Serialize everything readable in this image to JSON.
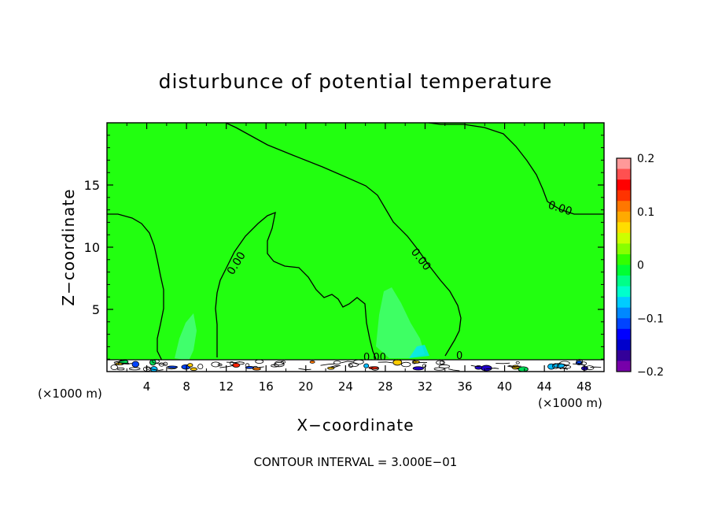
{
  "chart_data": {
    "type": "contour",
    "title": "disturbunce of potential temperature",
    "xlabel": "X−coordinate",
    "ylabel": "Z−coordinate",
    "x_unit_left": "(×1000 m)",
    "x_unit_right": "(×1000 m)",
    "xlim": [
      0,
      50
    ],
    "ylim": [
      0,
      20
    ],
    "xticks": [
      4,
      8,
      12,
      16,
      20,
      24,
      28,
      32,
      36,
      40,
      44,
      48
    ],
    "yticks": [
      5,
      10,
      15
    ],
    "contour_interval_text": "CONTOUR INTERVAL = 3.000E−01",
    "contour_labels": [
      "0.00",
      "0.00",
      "0.00",
      "0.00",
      "0",
      "0.00"
    ],
    "colorbar": {
      "min": -0.2,
      "max": 0.2,
      "tick_labels": [
        "0.2",
        "0.1",
        "0",
        "−0.1",
        "−0.2"
      ],
      "tick_values": [
        0.2,
        0.1,
        0,
        -0.1,
        -0.2
      ],
      "colors": [
        "#ff9999",
        "#ff5050",
        "#ff0000",
        "#ff3300",
        "#ff7700",
        "#ffaa00",
        "#ffdd00",
        "#ccff00",
        "#88ff00",
        "#33ff00",
        "#00ff33",
        "#00ff88",
        "#00ffcc",
        "#00ccff",
        "#0088ff",
        "#0044ff",
        "#0000ff",
        "#0000cc",
        "#330099",
        "#7700aa"
      ]
    },
    "field_color": "#22ff10",
    "anomaly_color": "#44ffaa",
    "grid": false
  }
}
